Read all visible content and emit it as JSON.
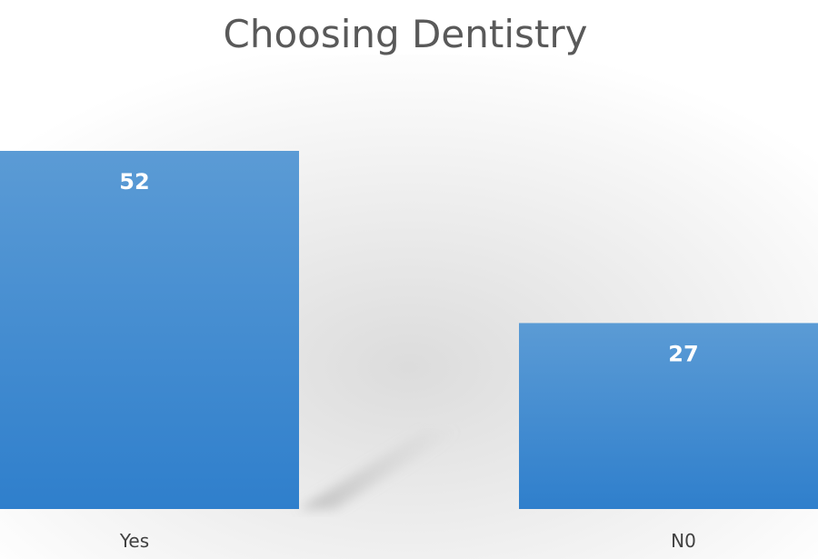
{
  "chart_data": {
    "type": "bar",
    "title": "Choosing Dentistry",
    "categories": [
      "Yes",
      "N0"
    ],
    "values": [
      52,
      27
    ],
    "xlabel": "",
    "ylabel": "",
    "ylim": [
      0,
      80
    ],
    "grid": false,
    "data_labels": true,
    "colors": {
      "bar_top": "#5b9bd5",
      "bar_bottom": "#2f7fcc",
      "label": "#ffffff"
    }
  }
}
